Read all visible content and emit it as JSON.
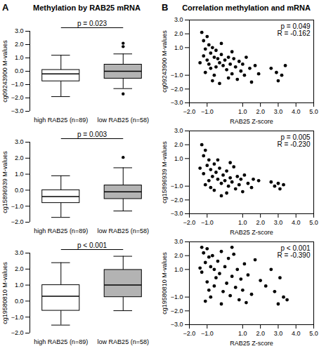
{
  "chart_data": [
    {
      "type": "box",
      "panel": "A",
      "title": "Methylation by RAB25 mRNA",
      "y_label": "cg09243900 M-values",
      "categories": [
        "high RAB25 (n=89)",
        "low RAB25 (n=58)"
      ],
      "colors": [
        "#ffffff",
        "#b3b3b3"
      ],
      "boxes": [
        {
          "whisker_low": -1.9,
          "q1": -0.75,
          "median": -0.2,
          "q3": 0.1,
          "whisker_high": 1.2,
          "outliers": []
        },
        {
          "whisker_low": -1.3,
          "q1": -0.55,
          "median": 0.0,
          "q3": 0.5,
          "whisker_high": 1.3,
          "outliers": [
            2.1,
            1.85,
            -1.7
          ]
        }
      ],
      "ylim": [
        -3,
        3
      ],
      "yticks": [
        -3,
        -2,
        -1,
        0,
        1,
        2,
        3
      ],
      "annotations": [
        "p = 0.023"
      ]
    },
    {
      "type": "box",
      "y_label": "cg15896939 M-values",
      "categories": [
        "high RAB25 (n=89)",
        "low RAB25 (n=58)"
      ],
      "colors": [
        "#ffffff",
        "#b3b3b3"
      ],
      "boxes": [
        {
          "whisker_low": -1.7,
          "q1": -0.8,
          "median": -0.4,
          "q3": 0.0,
          "whisker_high": 0.9,
          "outliers": []
        },
        {
          "whisker_low": -1.3,
          "q1": -0.55,
          "median": -0.1,
          "q3": 0.3,
          "whisker_high": 1.4,
          "outliers": [
            2.05
          ]
        }
      ],
      "ylim": [
        -2,
        3
      ],
      "yticks": [
        -2,
        -1,
        0,
        1,
        2,
        3
      ],
      "annotations": [
        "p = 0.003"
      ]
    },
    {
      "type": "box",
      "y_label": "cg19580810 M-values",
      "categories": [
        "high RAB25 (n=89)",
        "low RAB25 (n=58)"
      ],
      "colors": [
        "#ffffff",
        "#b3b3b3"
      ],
      "boxes": [
        {
          "whisker_low": -1.5,
          "q1": -0.6,
          "median": 0.3,
          "q3": 1.0,
          "whisker_high": 2.4,
          "outliers": []
        },
        {
          "whisker_low": -0.6,
          "q1": 0.25,
          "median": 1.0,
          "q3": 1.95,
          "whisker_high": 2.8,
          "outliers": []
        }
      ],
      "ylim": [
        -2,
        3
      ],
      "yticks": [
        -2,
        -1,
        0,
        1,
        2,
        3
      ],
      "annotations": [
        "p < 0.001"
      ]
    },
    {
      "type": "scatter",
      "panel": "B",
      "title": "Correlation methylation and mRNA",
      "x_label": "RAB25 Z-score",
      "y_label": "cg09243900 M-values",
      "color": "#000000",
      "x": [
        -1.3,
        -1.2,
        -1.0,
        -0.9,
        -1.1,
        -0.8,
        -1.2,
        -0.7,
        -0.5,
        -0.6,
        -1.0,
        -0.9,
        -0.4,
        -0.3,
        -0.8,
        -1.1,
        -0.6,
        -0.5,
        -0.2,
        -0.1,
        0.0,
        0.1,
        0.2,
        0.3,
        0.4,
        0.5,
        0.6,
        0.7,
        0.8,
        0.9,
        1.0,
        1.1,
        1.2,
        1.4,
        1.5,
        -0.3,
        0.2,
        -0.7,
        1.7,
        2.6,
        2.9,
        3.0,
        3.2,
        3.4,
        -1.4,
        -0.2,
        0.4,
        1.9
      ],
      "y": [
        2.1,
        1.5,
        1.8,
        1.2,
        0.9,
        0.6,
        0.4,
        1.0,
        0.8,
        0.3,
        0.1,
        -0.2,
        0.2,
        -0.1,
        -0.5,
        -0.8,
        -1.0,
        -0.4,
        0.5,
        -0.3,
        0.1,
        -0.6,
        0.3,
        -0.2,
        -0.9,
        0.2,
        -0.4,
        -1.3,
        0.0,
        -0.7,
        -0.2,
        -1.0,
        0.3,
        -0.5,
        -1.5,
        -1.6,
        -1.2,
        -1.4,
        -0.3,
        -0.5,
        -0.8,
        -1.4,
        -1.0,
        -0.3,
        -0.1,
        1.3,
        0.7,
        -0.9
      ],
      "xlim": [
        -2,
        5
      ],
      "xticks": [
        -2,
        -1,
        1,
        2,
        3,
        4,
        5
      ],
      "ylim": [
        -3,
        3
      ],
      "yticks": [
        -3,
        -2,
        -1,
        1,
        2,
        3
      ],
      "annotations": [
        "p = 0.049",
        "R = -0.162"
      ]
    },
    {
      "type": "scatter",
      "x_label": "RAB25 Z-score",
      "y_label": "cg15896939 M-values",
      "color": "#000000",
      "x": [
        -1.3,
        -1.1,
        -1.2,
        -0.9,
        -1.0,
        -0.8,
        -1.2,
        -0.7,
        -0.6,
        -0.5,
        -0.9,
        -1.1,
        -0.4,
        -0.3,
        -0.2,
        -0.1,
        0.0,
        0.1,
        0.2,
        0.3,
        0.4,
        0.5,
        0.6,
        0.7,
        0.8,
        0.9,
        1.0,
        1.1,
        1.3,
        1.5,
        -0.6,
        -0.8,
        0.1,
        -0.4,
        1.6,
        2.6,
        2.8,
        3.0,
        3.1,
        3.3,
        -1.4,
        0.3,
        -0.2,
        1.9
      ],
      "y": [
        2.0,
        1.6,
        1.2,
        0.9,
        0.5,
        0.2,
        -0.1,
        -0.3,
        0.6,
        0.0,
        -0.6,
        -0.9,
        -0.5,
        0.3,
        -0.8,
        -0.2,
        -0.6,
        0.1,
        -1.0,
        -0.4,
        -0.7,
        0.4,
        -1.2,
        -0.3,
        -0.9,
        -0.5,
        -1.4,
        -0.2,
        -0.8,
        -1.1,
        -1.3,
        -1.1,
        -1.5,
        0.9,
        -0.5,
        -0.7,
        -1.0,
        -0.8,
        -1.2,
        -0.9,
        0.3,
        0.7,
        -1.7,
        -0.6
      ],
      "xlim": [
        -2,
        5
      ],
      "xticks": [
        -2,
        -1,
        1,
        2,
        3,
        4,
        5
      ],
      "ylim": [
        -3,
        3
      ],
      "yticks": [
        -3,
        -2,
        -1,
        1,
        2,
        3
      ],
      "annotations": [
        "p = 0.005",
        "R = -0.230"
      ]
    },
    {
      "type": "scatter",
      "x_label": "RAB25 Z-score",
      "y_label": "cg19580810 M-values",
      "color": "#000000",
      "x": [
        -1.3,
        -1.2,
        -1.0,
        -0.9,
        -1.1,
        -0.8,
        -1.3,
        -0.7,
        -0.6,
        -0.5,
        -1.0,
        -0.9,
        -0.4,
        -0.3,
        -0.8,
        -1.1,
        -0.6,
        -0.2,
        -0.1,
        0.0,
        0.1,
        0.2,
        0.3,
        0.4,
        0.5,
        0.6,
        0.7,
        0.8,
        0.9,
        1.0,
        1.1,
        1.2,
        1.3,
        1.5,
        1.7,
        2.0,
        2.3,
        2.6,
        2.8,
        3.0,
        3.1,
        3.3,
        3.5,
        -1.4,
        -0.2,
        0.4
      ],
      "y": [
        2.6,
        2.2,
        2.5,
        1.9,
        1.5,
        1.2,
        0.8,
        2.0,
        1.0,
        0.4,
        0.1,
        -0.5,
        1.6,
        0.7,
        -1.0,
        -1.3,
        -0.2,
        2.3,
        -0.6,
        1.2,
        0.0,
        1.8,
        -0.9,
        0.5,
        2.1,
        -0.3,
        1.0,
        -1.2,
        0.3,
        -0.5,
        1.4,
        -1.4,
        0.6,
        -0.8,
        1.7,
        0.2,
        -0.2,
        1.0,
        -0.6,
        -1.5,
        0.4,
        -1.0,
        -1.2,
        1.1,
        -1.5,
        2.6
      ],
      "xlim": [
        -2,
        5
      ],
      "xticks": [
        -2,
        -1,
        1,
        2,
        3,
        4,
        5
      ],
      "ylim": [
        -3,
        3
      ],
      "yticks": [
        -3,
        -2,
        -1,
        1,
        2,
        3
      ],
      "annotations": [
        "p < 0.001",
        "R = -0.390"
      ]
    }
  ]
}
